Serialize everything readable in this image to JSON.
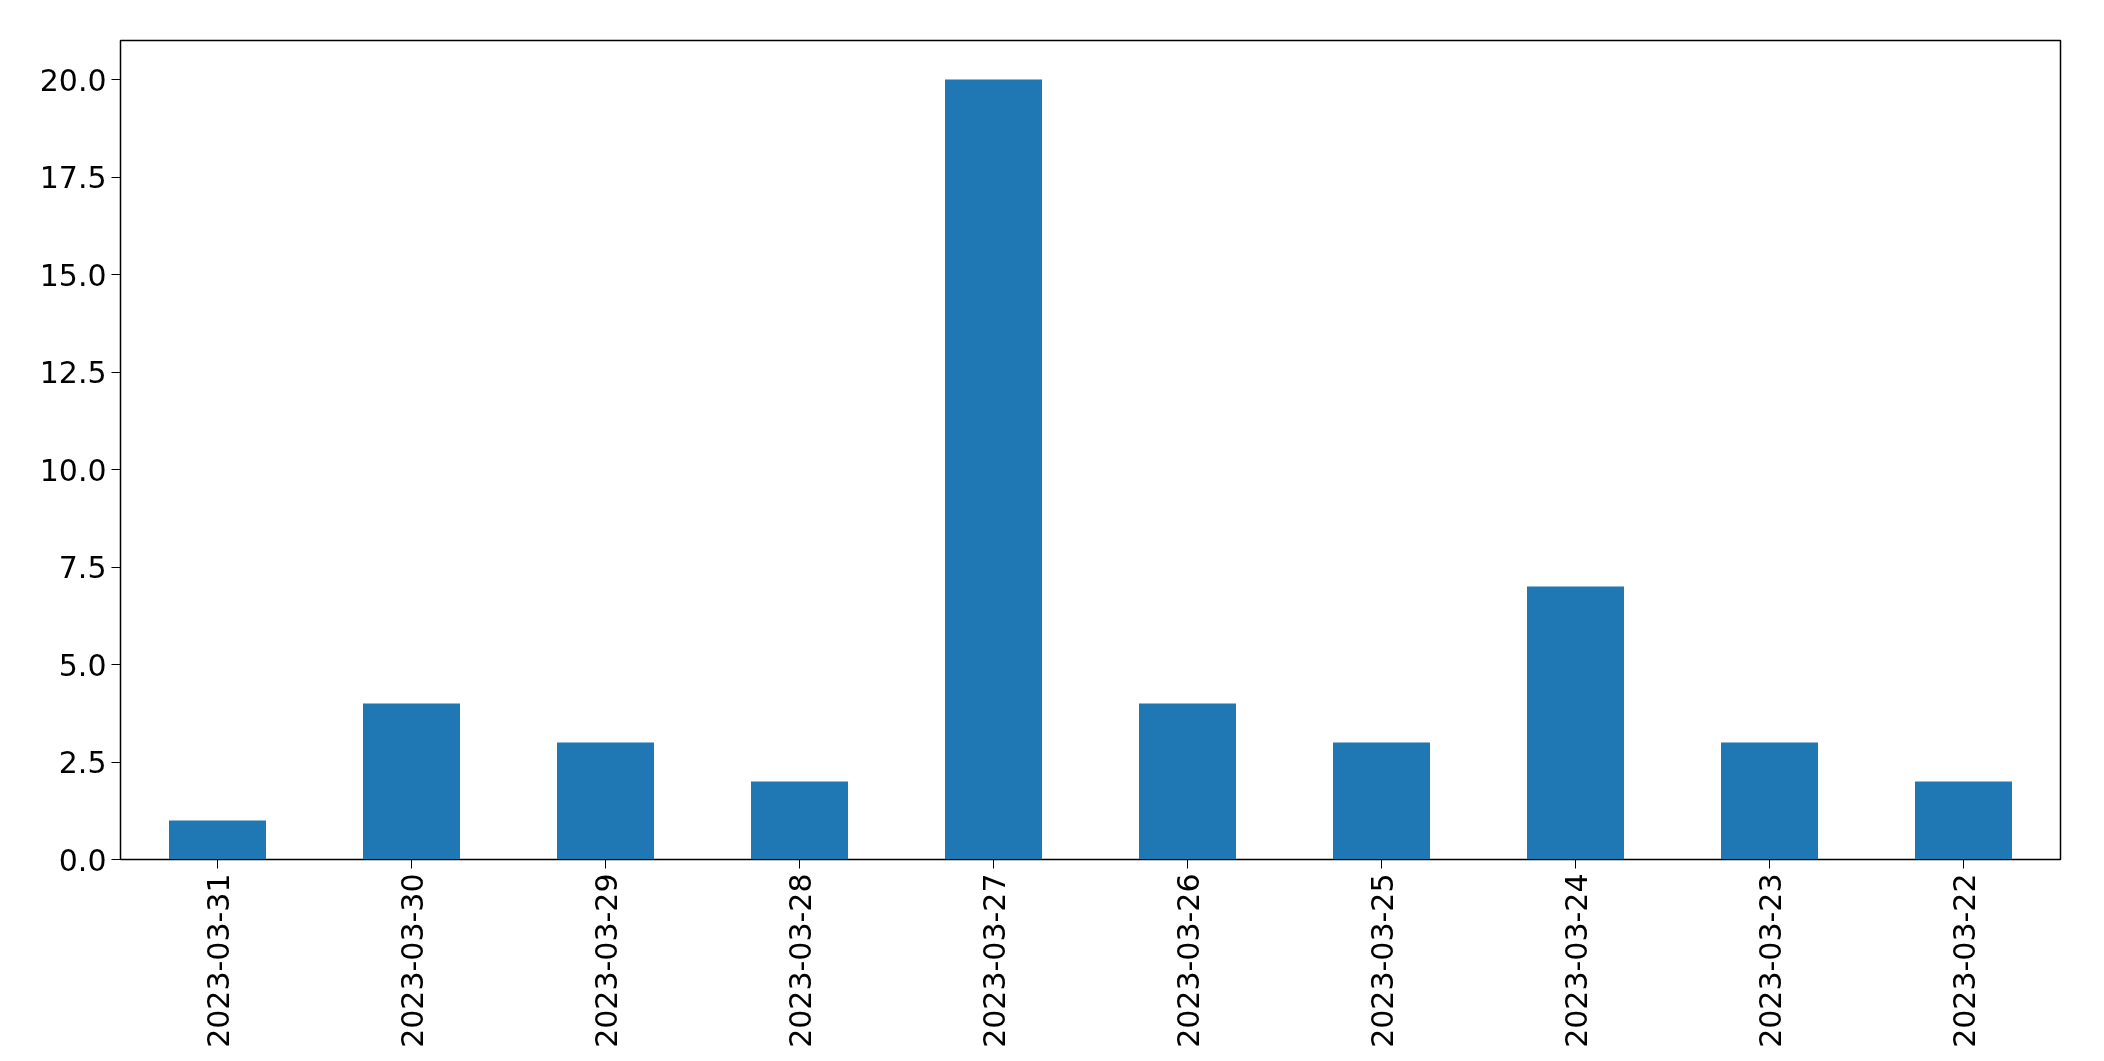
{
  "chart_data": {
    "type": "bar",
    "categories": [
      "2023-03-31",
      "2023-03-30",
      "2023-03-29",
      "2023-03-28",
      "2023-03-27",
      "2023-03-26",
      "2023-03-25",
      "2023-03-24",
      "2023-03-23",
      "2023-03-22"
    ],
    "values": [
      1,
      4,
      3,
      2,
      20,
      4,
      3,
      7,
      3,
      2
    ],
    "color": "#1f77b4",
    "ylim": [
      0,
      21
    ],
    "yticks": [
      {
        "value": 0,
        "label": "0.0"
      },
      {
        "value": 2.5,
        "label": "2.5"
      },
      {
        "value": 5,
        "label": "5.0"
      },
      {
        "value": 7.5,
        "label": "7.5"
      },
      {
        "value": 10,
        "label": "10.0"
      },
      {
        "value": 12.5,
        "label": "12.5"
      },
      {
        "value": 15,
        "label": "15.0"
      },
      {
        "value": 17.5,
        "label": "17.5"
      },
      {
        "value": 20,
        "label": "20.0"
      }
    ],
    "grid": false
  }
}
